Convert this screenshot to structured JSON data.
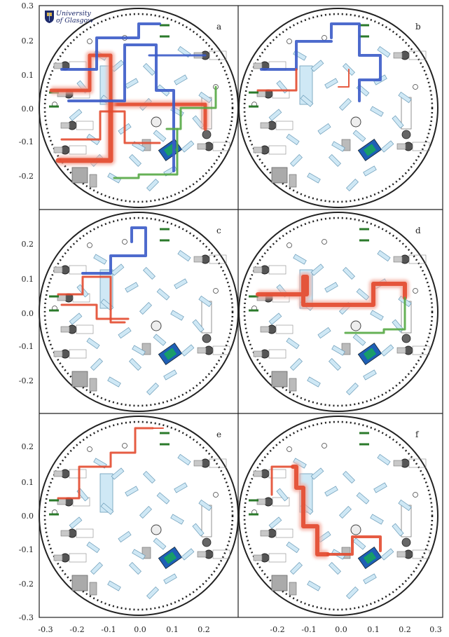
{
  "logo": {
    "line1": "University",
    "line2": "of Glasgow",
    "shield_color": "#1d2a6b",
    "shield_accent": "#d9b44a"
  },
  "axes": {
    "y_ticks": [
      "0.3",
      "0.2",
      "0.1",
      "0.0",
      "-0.1",
      "-0.2",
      "-0.3"
    ],
    "x_ticks": [
      "-0.3",
      "-0.2",
      "-0.1",
      "0.0",
      "0.1",
      "0.2",
      "-0.2",
      "-0.1",
      "0.0",
      "0.1",
      "0.2",
      "0.3"
    ]
  },
  "colors": {
    "frame": "#222222",
    "breadboard_fill": "#ffffff",
    "optic_fill": "#cfe8f5",
    "optic_stroke": "#6a9bb8",
    "mount_fill": "#c8c8c8",
    "beam_red": "#e34a2f",
    "beam_red_glow": "#f3a79a",
    "beam_blue": "#3b5bc8",
    "beam_green": "#55a844",
    "cell_fill": "#1f5fb5",
    "cell_chip": "#1a9c6a",
    "fiber_green": "#2b7a2b"
  },
  "panels": [
    {
      "letter": "a"
    },
    {
      "letter": "b"
    },
    {
      "letter": "c"
    },
    {
      "letter": "d"
    },
    {
      "letter": "e"
    },
    {
      "letter": "f"
    }
  ]
}
